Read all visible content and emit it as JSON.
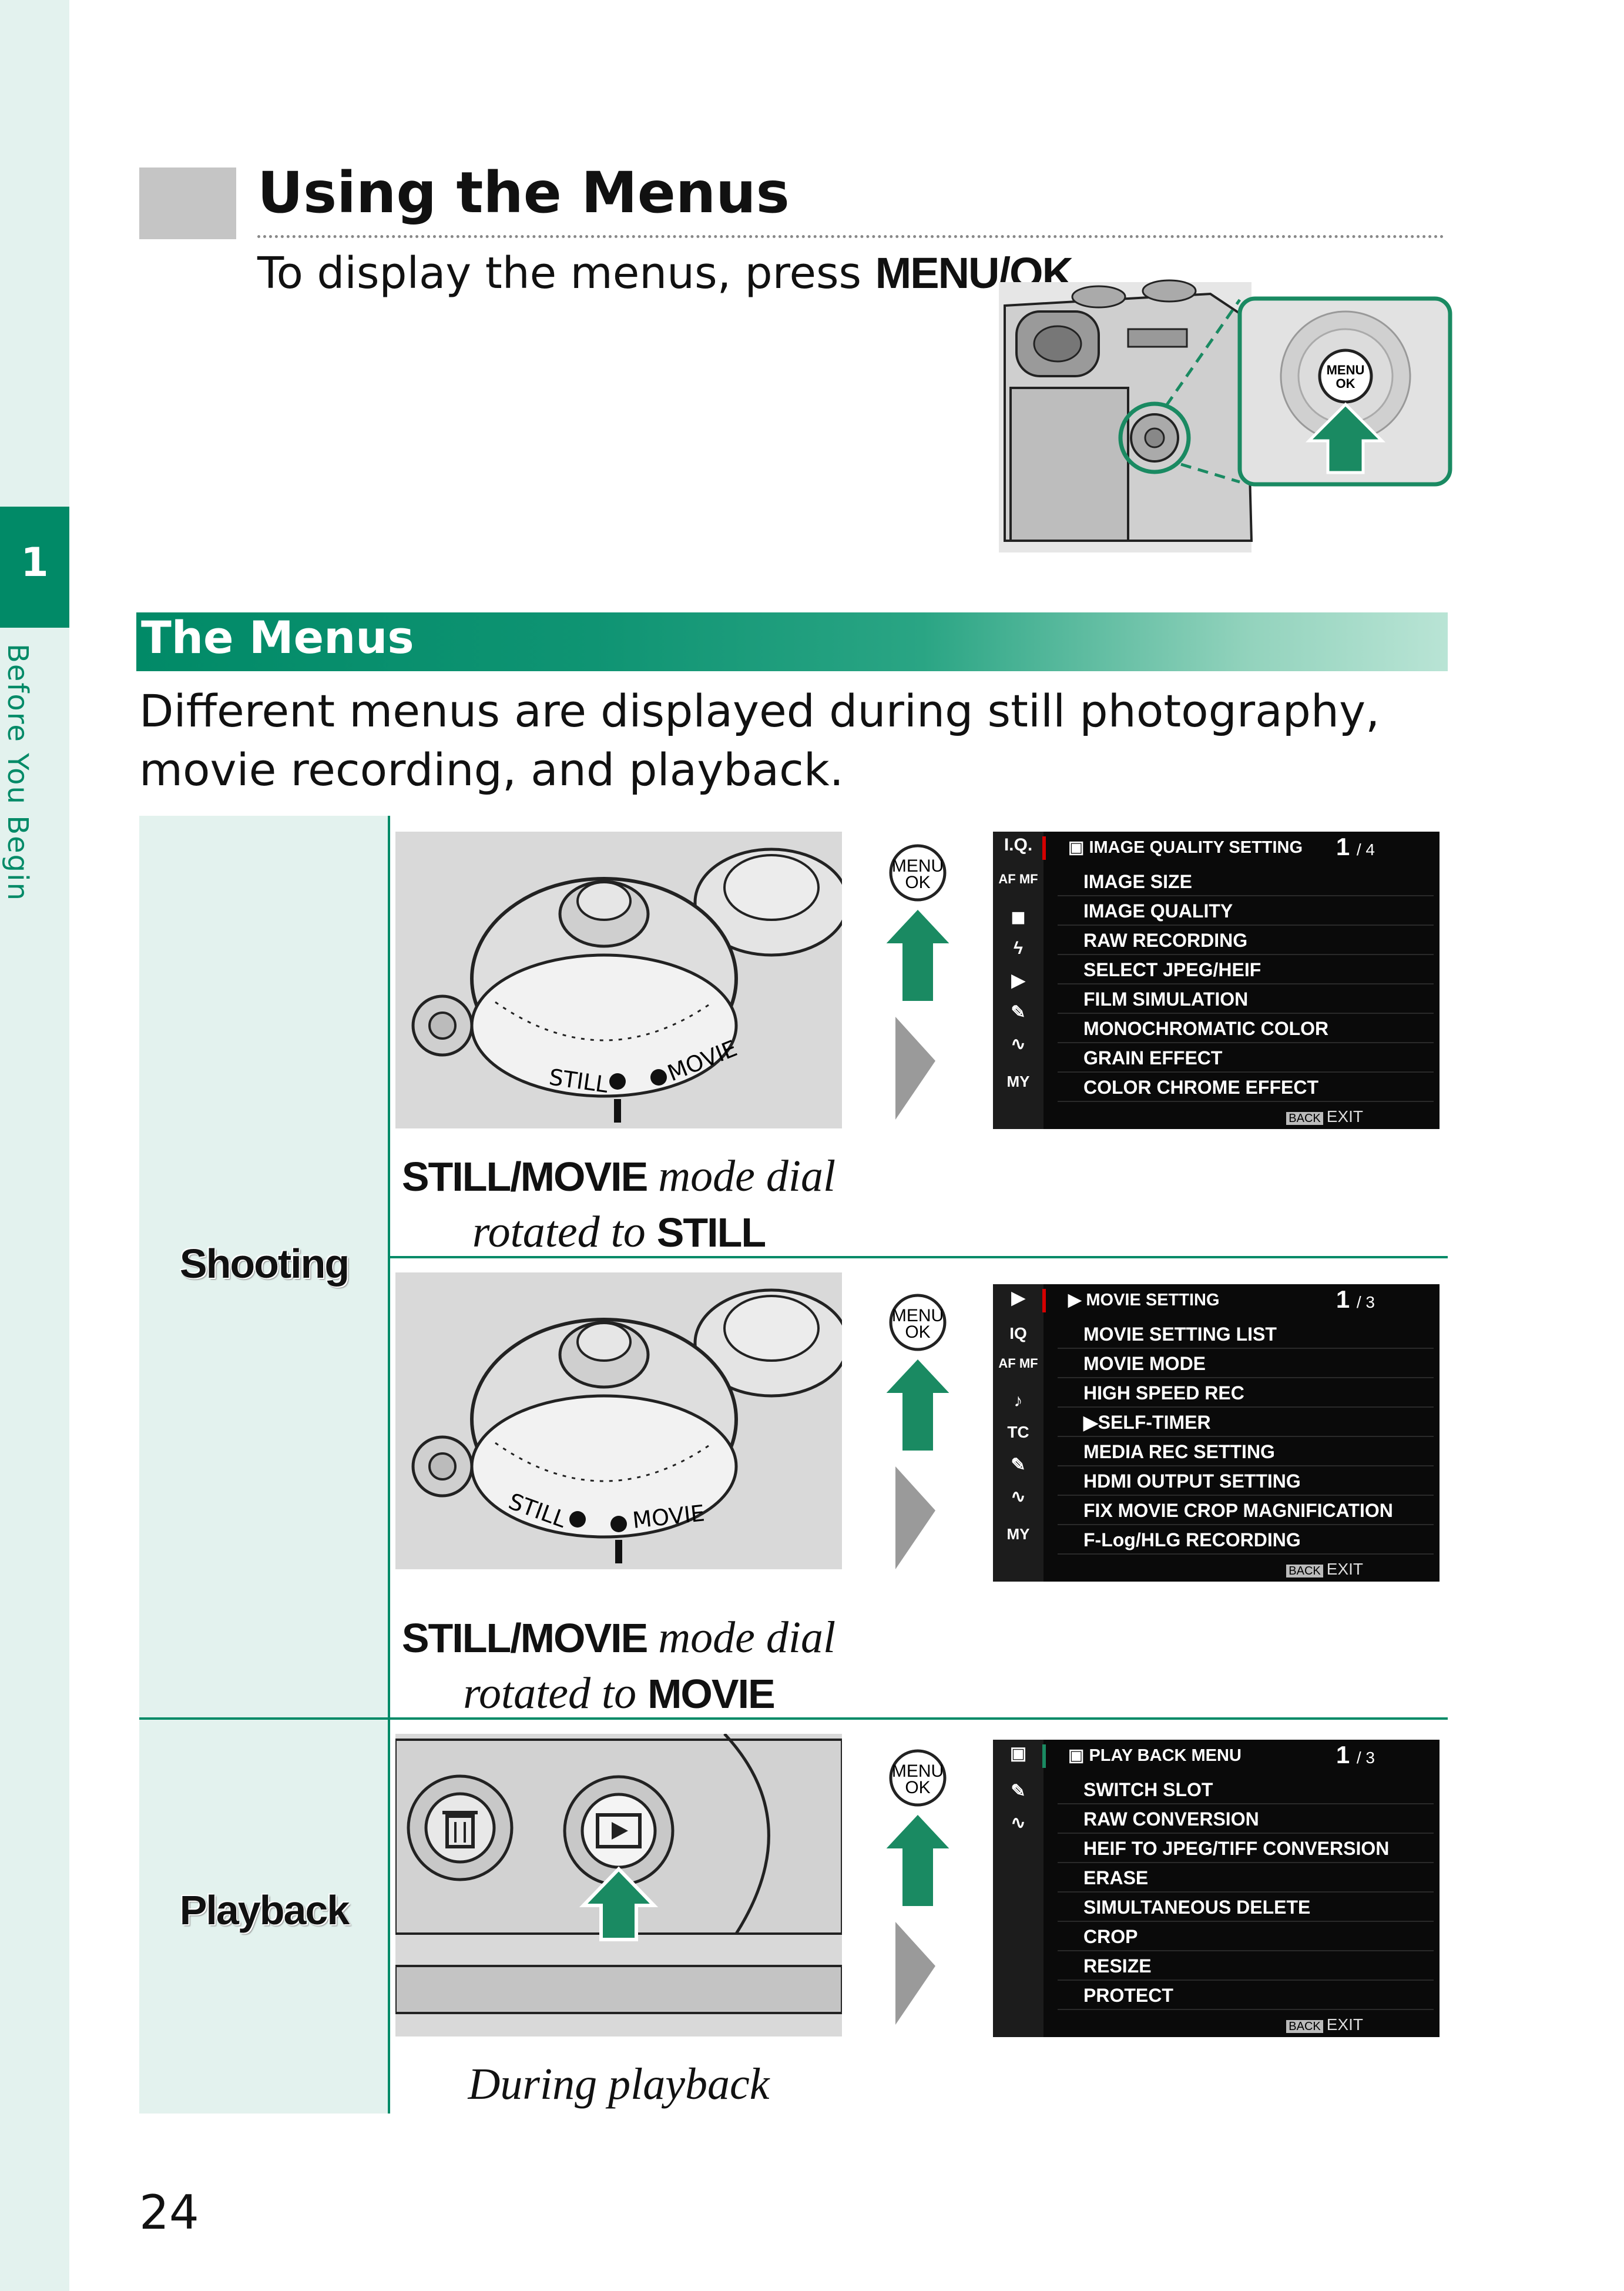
{
  "sidebar": {
    "chapter_number": "1",
    "chapter_title": "Before You Begin"
  },
  "header": {
    "title": "Using the Menus",
    "intro_prefix": "To display the menus, press ",
    "intro_button": "MENU/OK",
    "intro_suffix": "."
  },
  "button_label": {
    "line1": "MENU",
    "line2": "OK"
  },
  "section": {
    "title": "The Menus",
    "description": "Different menus are displayed during still photography, movie recording, and playback."
  },
  "rows": {
    "shooting_label": "Shooting",
    "playback_label": "Playback",
    "dial_still_text": "STILL",
    "dial_movie_text": "MOVIE",
    "caption_still": {
      "bold1": "STILL",
      "slash": "/",
      "bold2": "MOVIE",
      "italic1": " mode dial",
      "italic2": "rotated to ",
      "bold3": "STILL"
    },
    "caption_movie": {
      "bold1": "STILL",
      "slash": "/",
      "bold2": "MOVIE",
      "italic1": " mode dial",
      "italic2": "rotated to ",
      "bold3": "MOVIE"
    },
    "caption_playback": "During playback"
  },
  "screens": {
    "still": {
      "header": "IMAGE QUALITY SETTING",
      "page_current": "1",
      "page_total": "/ 4",
      "icons": [
        "I.Q.",
        "AF MF",
        "camera-icon",
        "flash-icon",
        "movie-icon",
        "wrench-icon",
        "wave-icon",
        "MY"
      ],
      "items": [
        "IMAGE SIZE",
        "IMAGE QUALITY",
        "RAW RECORDING",
        "SELECT JPEG/HEIF",
        "FILM SIMULATION",
        "MONOCHROMATIC COLOR",
        "GRAIN EFFECT",
        "COLOR CHROME EFFECT"
      ],
      "back": "BACK",
      "exit": "EXIT"
    },
    "movie": {
      "header": "MOVIE SETTING",
      "page_current": "1",
      "page_total": "/ 3",
      "icons": [
        "movie-icon",
        "IQ",
        "AF MF",
        "mic-icon",
        "TC",
        "wrench-icon",
        "wave-icon",
        "MY"
      ],
      "items": [
        "MOVIE SETTING LIST",
        "MOVIE MODE",
        "HIGH SPEED REC",
        "SELF-TIMER",
        "MEDIA REC SETTING",
        "HDMI OUTPUT SETTING",
        "FIX MOVIE CROP MAGNIFICATION",
        "F-Log/HLG RECORDING"
      ],
      "back": "BACK",
      "exit": "EXIT"
    },
    "playback": {
      "header": "PLAY BACK MENU",
      "page_current": "1",
      "page_total": "/ 3",
      "icons": [
        "play-icon",
        "wrench-icon",
        "wave-icon"
      ],
      "items": [
        "SWITCH SLOT",
        "RAW CONVERSION",
        "HEIF TO JPEG/TIFF CONVERSION",
        "ERASE",
        "SIMULTANEOUS DELETE",
        "CROP",
        "RESIZE",
        "PROTECT"
      ],
      "back": "BACK",
      "exit": "EXIT"
    }
  },
  "footer": {
    "page_number": "24"
  },
  "colors": {
    "accent": "#018a67",
    "arrow": "#1a8a62",
    "tint": "#e3f2ee"
  }
}
